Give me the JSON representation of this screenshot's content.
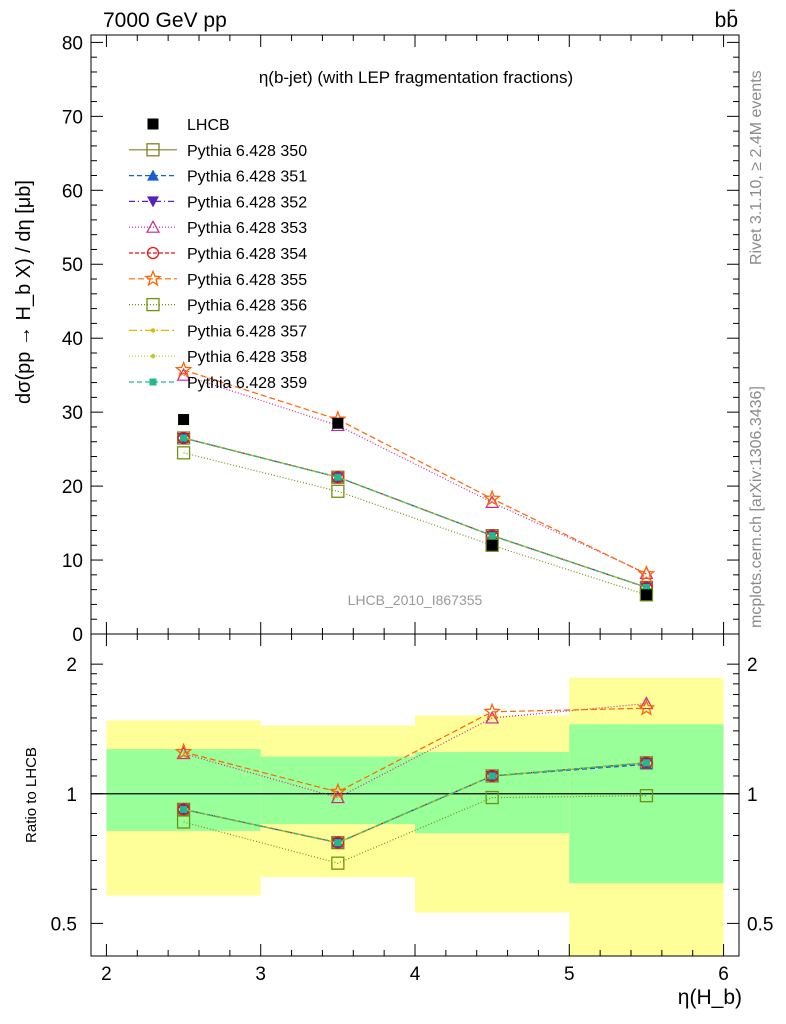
{
  "header": {
    "energy": "7000 GeV pp",
    "process": "bb̄"
  },
  "main_plot": {
    "title": "η(b-jet) (with LEP fragmentation fractions)",
    "ylabel": "dσ(pp → H_b X) / dη [μb]",
    "watermark": "LHCB_2010_I867355",
    "yticks": [
      "0",
      "10",
      "20",
      "30",
      "40",
      "50",
      "60",
      "70",
      "80"
    ]
  },
  "ratio_plot": {
    "ylabel": "Ratio to LHCB",
    "yticks": [
      "0.5",
      "1",
      "2"
    ],
    "xticks": [
      "2",
      "3",
      "4",
      "5",
      "6"
    ],
    "xlabel": "η(H_b)"
  },
  "side_text": {
    "rivet": "Rivet 3.1.10, ≥ 2.4M events",
    "mcplots": "mcplots.cern.ch [arXiv:1306.3436]"
  },
  "colors": {
    "band_inner": "#99ff99",
    "band_outer": "#ffff99",
    "data": "#000000"
  },
  "chart_data": {
    "type": "line",
    "title": "η(b-jet) (with LEP fragmentation fractions)",
    "xlabel": "η(H_b)",
    "ylabel": "dσ(pp → H_b X) / dη [μb]",
    "xlim": [
      1.9,
      6.1
    ],
    "ylim": [
      0,
      81
    ],
    "ratio_ylim": [
      0.42,
      2.35
    ],
    "ratio_ylabel": "Ratio to LHCB",
    "ratio_scale": "log",
    "legend_position": "top-left",
    "x": [
      2.5,
      3.5,
      4.5,
      5.5
    ],
    "data": {
      "name": "LHCB",
      "y": [
        29.0,
        28.5,
        12.0,
        5.3
      ],
      "bins": [
        [
          2,
          3
        ],
        [
          3,
          4
        ],
        [
          4,
          5
        ],
        [
          5,
          6
        ]
      ],
      "ratio_band_inner": [
        [
          0.82,
          1.27
        ],
        [
          0.85,
          1.22
        ],
        [
          0.81,
          1.25
        ],
        [
          0.62,
          1.45
        ]
      ],
      "ratio_band_outer": [
        [
          0.58,
          1.48
        ],
        [
          0.64,
          1.44
        ],
        [
          0.53,
          1.52
        ],
        [
          0.4,
          1.86
        ]
      ]
    },
    "series": [
      {
        "name": "Pythia 6.428 350",
        "color": "#808020",
        "marker": "square-open",
        "dash": "solid",
        "y": [
          26.5,
          21.2,
          13.3,
          6.3
        ],
        "ratio": [
          0.92,
          0.77,
          1.1,
          1.18
        ]
      },
      {
        "name": "Pythia 6.428 351",
        "color": "#1a5cd6",
        "marker": "triangle-up",
        "dash": "5,3",
        "y": [
          26.5,
          21.2,
          13.3,
          6.3
        ],
        "ratio": [
          0.92,
          0.77,
          1.1,
          1.17
        ]
      },
      {
        "name": "Pythia 6.428 352",
        "color": "#5522bb",
        "marker": "triangle-down",
        "dash": "6,3,1,3",
        "y": [
          26.5,
          21.2,
          13.3,
          6.3
        ],
        "ratio": [
          0.92,
          0.77,
          1.1,
          1.18
        ]
      },
      {
        "name": "Pythia 6.428 353",
        "color": "#cc2299",
        "marker": "triangle-open",
        "dash": "1,2",
        "y": [
          35.0,
          28.2,
          17.8,
          8.2
        ],
        "ratio": [
          1.24,
          0.98,
          1.5,
          1.62
        ]
      },
      {
        "name": "Pythia 6.428 354",
        "color": "#ee1111",
        "marker": "circle-open",
        "dash": "4,2",
        "y": [
          26.5,
          21.2,
          13.3,
          6.3
        ],
        "ratio": [
          0.92,
          0.77,
          1.1,
          1.18
        ]
      },
      {
        "name": "Pythia 6.428 355",
        "color": "#ff6600",
        "marker": "star-open",
        "dash": "6,3",
        "y": [
          35.7,
          29.0,
          18.3,
          8.1
        ],
        "ratio": [
          1.25,
          1.01,
          1.55,
          1.58
        ]
      },
      {
        "name": "Pythia 6.428 356",
        "color": "#709010",
        "marker": "square-open",
        "dash": "1,2",
        "y": [
          24.5,
          19.3,
          12.0,
          5.3
        ],
        "ratio": [
          0.86,
          0.69,
          0.98,
          0.99
        ]
      },
      {
        "name": "Pythia 6.428 357",
        "color": "#ddbb00",
        "marker": "dot",
        "dash": "8,3,2,3",
        "y": [
          26.5,
          21.2,
          13.3,
          6.3
        ],
        "ratio": [
          0.92,
          0.77,
          1.1,
          1.18
        ]
      },
      {
        "name": "Pythia 6.428 358",
        "color": "#bbcc22",
        "marker": "dot",
        "dash": "1,2",
        "y": [
          26.5,
          21.2,
          13.3,
          6.3
        ],
        "ratio": [
          0.92,
          0.77,
          1.1,
          1.18
        ]
      },
      {
        "name": "Pythia 6.428 359",
        "color": "#22bb88",
        "marker": "square",
        "dash": "5,3",
        "y": [
          26.5,
          21.2,
          13.3,
          6.3
        ],
        "ratio": [
          0.92,
          0.77,
          1.1,
          1.18
        ]
      }
    ]
  }
}
